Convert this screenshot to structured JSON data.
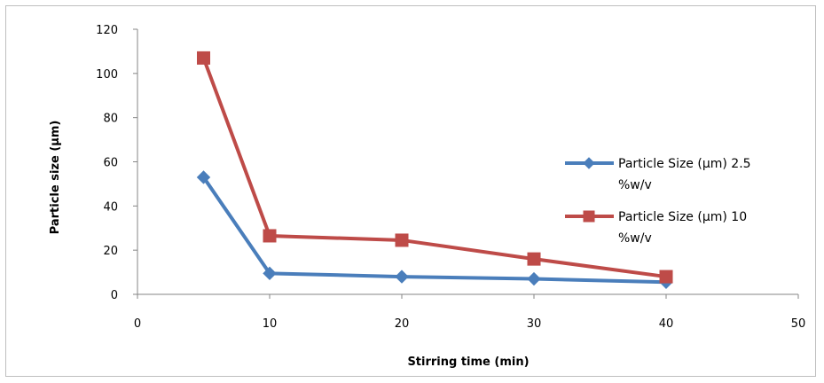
{
  "chart_data": {
    "type": "line",
    "title": "",
    "xlabel": "Stirring time (min)",
    "ylabel": "Particle size (µm)",
    "xlim": [
      0,
      50
    ],
    "ylim": [
      0,
      120
    ],
    "x_ticks": [
      0,
      10,
      20,
      30,
      40,
      50
    ],
    "y_ticks": [
      0,
      20,
      40,
      60,
      80,
      100,
      120
    ],
    "x_tick_labels": [
      "0",
      "10",
      "20",
      "30",
      "40",
      "50"
    ],
    "y_tick_labels": [
      "0",
      "20",
      "40",
      "60",
      "80",
      "100",
      "120"
    ],
    "grid": false,
    "legend_position": "right",
    "series": [
      {
        "name": "Particle Size (µm) 2.5 %w/v",
        "legend_lines": [
          "Particle Size (µm) 2.5",
          "%w/v"
        ],
        "color": "#4a7ebb",
        "marker": "diamond",
        "x": [
          5,
          10,
          20,
          30,
          40
        ],
        "y": [
          53,
          9.5,
          8,
          7,
          5.5
        ]
      },
      {
        "name": "Particle Size (µm) 10 %w/v",
        "legend_lines": [
          "Particle Size (µm) 10",
          "%w/v"
        ],
        "color": "#be4b48",
        "marker": "square",
        "x": [
          5,
          10,
          20,
          30,
          40
        ],
        "y": [
          107,
          26.5,
          24.5,
          16,
          8
        ]
      }
    ]
  }
}
